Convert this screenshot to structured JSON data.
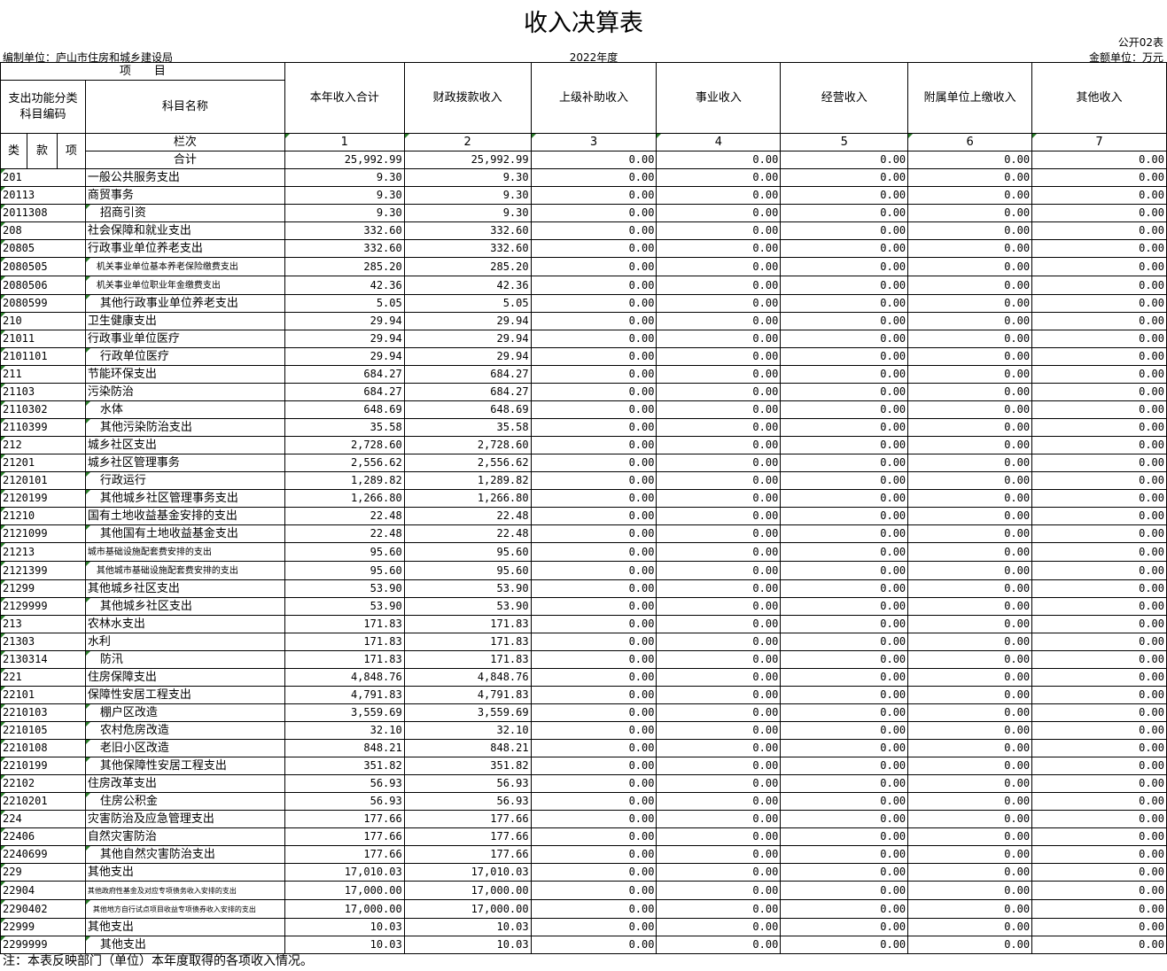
{
  "title": "收入决算表",
  "form_no": "公开02表",
  "unit": "编制单位：庐山市住房和城乡建设局",
  "year": "2022年度",
  "money_unit": "金额单位：万元",
  "note": "注：本表反映部门（单位）本年度取得的各项收入情况。",
  "header": {
    "item": "项　　目",
    "code": "支出功能分类科目编码",
    "name": "科目名称",
    "lei": "类",
    "kuan": "款",
    "xiang": "项",
    "lanci": "栏次",
    "total": "合计",
    "columns": [
      "本年收入合计",
      "财政拨款收入",
      "上级补助收入",
      "事业收入",
      "经营收入",
      "附属单位上缴收入",
      "其他收入"
    ],
    "col_nums": [
      "1",
      "2",
      "3",
      "4",
      "5",
      "6",
      "7"
    ]
  },
  "total_row": [
    "25,992.99",
    "25,992.99",
    "0.00",
    "0.00",
    "0.00",
    "0.00",
    "0.00"
  ],
  "rows": [
    [
      "201",
      "一般公共服务支出",
      "9.30",
      "9.30"
    ],
    [
      "20113",
      "商贸事务",
      "9.30",
      "9.30"
    ],
    [
      "2011308",
      "招商引资",
      "9.30",
      "9.30"
    ],
    [
      "208",
      "社会保障和就业支出",
      "332.60",
      "332.60"
    ],
    [
      "20805",
      "行政事业单位养老支出",
      "332.60",
      "332.60"
    ],
    [
      "2080505",
      "机关事业单位基本养老保险缴费支出",
      "285.20",
      "285.20"
    ],
    [
      "2080506",
      "机关事业单位职业年金缴费支出",
      "42.36",
      "42.36"
    ],
    [
      "2080599",
      "其他行政事业单位养老支出",
      "5.05",
      "5.05"
    ],
    [
      "210",
      "卫生健康支出",
      "29.94",
      "29.94"
    ],
    [
      "21011",
      "行政事业单位医疗",
      "29.94",
      "29.94"
    ],
    [
      "2101101",
      "行政单位医疗",
      "29.94",
      "29.94"
    ],
    [
      "211",
      "节能环保支出",
      "684.27",
      "684.27"
    ],
    [
      "21103",
      "污染防治",
      "684.27",
      "684.27"
    ],
    [
      "2110302",
      "水体",
      "648.69",
      "648.69"
    ],
    [
      "2110399",
      "其他污染防治支出",
      "35.58",
      "35.58"
    ],
    [
      "212",
      "城乡社区支出",
      "2,728.60",
      "2,728.60"
    ],
    [
      "21201",
      "城乡社区管理事务",
      "2,556.62",
      "2,556.62"
    ],
    [
      "2120101",
      "行政运行",
      "1,289.82",
      "1,289.82"
    ],
    [
      "2120199",
      "其他城乡社区管理事务支出",
      "1,266.80",
      "1,266.80"
    ],
    [
      "21210",
      "国有土地收益基金安排的支出",
      "22.48",
      "22.48"
    ],
    [
      "2121099",
      "其他国有土地收益基金支出",
      "22.48",
      "22.48"
    ],
    [
      "21213",
      "城市基础设施配套费安排的支出",
      "95.60",
      "95.60"
    ],
    [
      "2121399",
      "其他城市基础设施配套费安排的支出",
      "95.60",
      "95.60"
    ],
    [
      "21299",
      "其他城乡社区支出",
      "53.90",
      "53.90"
    ],
    [
      "2129999",
      "其他城乡社区支出",
      "53.90",
      "53.90"
    ],
    [
      "213",
      "农林水支出",
      "171.83",
      "171.83"
    ],
    [
      "21303",
      "水利",
      "171.83",
      "171.83"
    ],
    [
      "2130314",
      "防汛",
      "171.83",
      "171.83"
    ],
    [
      "221",
      "住房保障支出",
      "4,848.76",
      "4,848.76"
    ],
    [
      "22101",
      "保障性安居工程支出",
      "4,791.83",
      "4,791.83"
    ],
    [
      "2210103",
      "棚户区改造",
      "3,559.69",
      "3,559.69"
    ],
    [
      "2210105",
      "农村危房改造",
      "32.10",
      "32.10"
    ],
    [
      "2210108",
      "老旧小区改造",
      "848.21",
      "848.21"
    ],
    [
      "2210199",
      "其他保障性安居工程支出",
      "351.82",
      "351.82"
    ],
    [
      "22102",
      "住房改革支出",
      "56.93",
      "56.93"
    ],
    [
      "2210201",
      "住房公积金",
      "56.93",
      "56.93"
    ],
    [
      "224",
      "灾害防治及应急管理支出",
      "177.66",
      "177.66"
    ],
    [
      "22406",
      "自然灾害防治",
      "177.66",
      "177.66"
    ],
    [
      "2240699",
      "其他自然灾害防治支出",
      "177.66",
      "177.66"
    ],
    [
      "229",
      "其他支出",
      "17,010.03",
      "17,010.03"
    ],
    [
      "22904",
      "其他政府性基金及对应专项债务收入安排的支出",
      "17,000.00",
      "17,000.00"
    ],
    [
      "2290402",
      "其他地方自行试点项目收益专项债券收入安排的支出",
      "17,000.00",
      "17,000.00"
    ],
    [
      "22999",
      "其他支出",
      "10.03",
      "10.03"
    ],
    [
      "2299999",
      "其他支出",
      "10.03",
      "10.03"
    ]
  ],
  "zero": "0.00"
}
